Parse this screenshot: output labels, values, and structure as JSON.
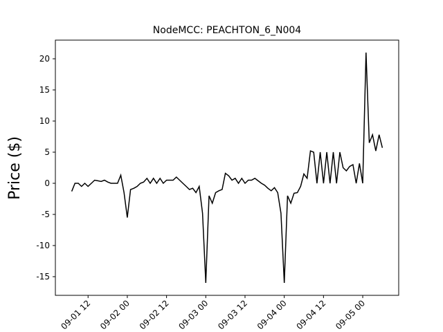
{
  "chart_data": {
    "type": "line",
    "title": "NodeMCC: PEACHTON_6_N004",
    "y_label": "Price ($)",
    "color": "#000000",
    "x": [
      "09-01 07",
      "09-01 08",
      "09-01 09",
      "09-01 10",
      "09-01 11",
      "09-01 12",
      "09-01 13",
      "09-01 14",
      "09-01 15",
      "09-01 16",
      "09-01 17",
      "09-01 18",
      "09-01 19",
      "09-01 20",
      "09-01 21",
      "09-01 22",
      "09-01 23",
      "09-02 00",
      "09-02 01",
      "09-02 02",
      "09-02 03",
      "09-02 04",
      "09-02 05",
      "09-02 06",
      "09-02 07",
      "09-02 08",
      "09-02 09",
      "09-02 10",
      "09-02 11",
      "09-02 12",
      "09-02 13",
      "09-02 14",
      "09-02 15",
      "09-02 16",
      "09-02 17",
      "09-02 18",
      "09-02 19",
      "09-02 20",
      "09-02 21",
      "09-02 22",
      "09-02 23",
      "09-03 00",
      "09-03 01",
      "09-03 02",
      "09-03 03",
      "09-03 04",
      "09-03 05",
      "09-03 06",
      "09-03 07",
      "09-03 08",
      "09-03 09",
      "09-03 10",
      "09-03 11",
      "09-03 12",
      "09-03 13",
      "09-03 14",
      "09-03 15",
      "09-03 16",
      "09-03 17",
      "09-03 18",
      "09-03 19",
      "09-03 20",
      "09-03 21",
      "09-03 22",
      "09-03 23",
      "09-04 00",
      "09-04 01",
      "09-04 02",
      "09-04 03",
      "09-04 04",
      "09-04 05",
      "09-04 06",
      "09-04 07",
      "09-04 08",
      "09-04 09",
      "09-04 10",
      "09-04 11",
      "09-04 12",
      "09-04 13",
      "09-04 14",
      "09-04 15",
      "09-04 16",
      "09-04 17",
      "09-04 18",
      "09-04 19",
      "09-04 20",
      "09-04 21",
      "09-04 22",
      "09-04 23",
      "09-05 00",
      "09-05 01",
      "09-05 02",
      "09-05 03",
      "09-05 04",
      "09-05 05",
      "09-05 06"
    ],
    "values": [
      -1.3,
      0,
      0,
      -0.5,
      0,
      -0.5,
      0,
      0.5,
      0.4,
      0.3,
      0.5,
      0.2,
      0,
      0,
      0,
      1.3,
      -1.5,
      -5.5,
      -1,
      -0.8,
      -0.5,
      0,
      0.2,
      0.8,
      0,
      0.8,
      0,
      0.8,
      0,
      0.5,
      0.5,
      0.5,
      1,
      0.5,
      0,
      -0.5,
      -1,
      -0.8,
      -1.5,
      -0.5,
      -4.8,
      -16,
      -2,
      -3.2,
      -1.5,
      -1.2,
      -1,
      1.6,
      1.2,
      0.5,
      0.8,
      0,
      0.8,
      0,
      0.5,
      0.5,
      0.8,
      0.4,
      0,
      -0.3,
      -0.8,
      -1.2,
      -0.7,
      -1.5,
      -4.8,
      -16,
      -2,
      -3.2,
      -1.6,
      -1.5,
      -0.5,
      1.5,
      0.8,
      5.2,
      5,
      0,
      5,
      0,
      5,
      0,
      5,
      0,
      5,
      2.5,
      2,
      2.7,
      3,
      0,
      3.2,
      0,
      21,
      6.5,
      7.8,
      5.2,
      7.8,
      5.7
    ],
    "xlim": [
      "09-01 02",
      "09-05 11"
    ],
    "xticks": [
      "09-01 12",
      "09-02 00",
      "09-02 12",
      "09-03 00",
      "09-03 12",
      "09-04 00",
      "09-04 12",
      "09-05 00"
    ],
    "ylim": [
      -18,
      23
    ],
    "yticks": [
      -15,
      -10,
      -5,
      0,
      5,
      10,
      15,
      20
    ]
  }
}
